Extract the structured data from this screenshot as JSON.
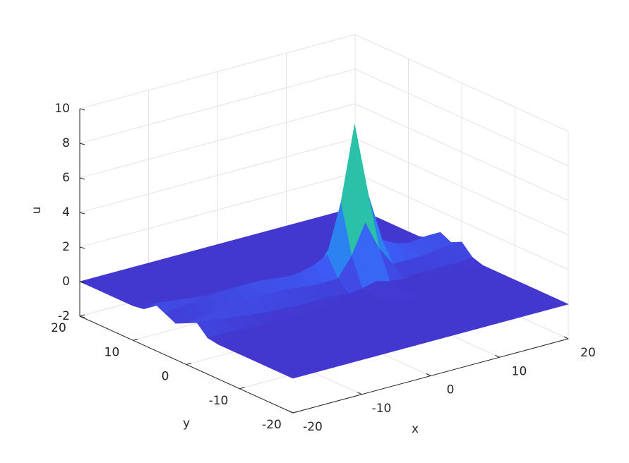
{
  "chart_data": {
    "type": "surface",
    "xlabel": "x",
    "ylabel": "y",
    "zlabel": "u",
    "x": [
      -20,
      -18,
      -16,
      -14,
      -12,
      -10,
      -8,
      -6,
      -4,
      -2,
      0,
      2,
      4,
      6,
      8,
      10,
      12,
      14,
      16,
      18,
      20
    ],
    "y": [
      -20,
      -18,
      -16,
      -14,
      -12,
      -10,
      -8,
      -6,
      -4,
      -2,
      0,
      2,
      4,
      6,
      8,
      10,
      12,
      14,
      16,
      18,
      20
    ],
    "z": [
      [
        0,
        0,
        0,
        0,
        0,
        0,
        0,
        0,
        0,
        0,
        0,
        0,
        0,
        0,
        0,
        0,
        0,
        0,
        0,
        0,
        0
      ],
      [
        0,
        0,
        0,
        0,
        0,
        0,
        0,
        0,
        0,
        0,
        0,
        0,
        0,
        0,
        0,
        0,
        0,
        0,
        0,
        0,
        0
      ],
      [
        0,
        0,
        0,
        0,
        0,
        0,
        0,
        0,
        0,
        0,
        0,
        0,
        0,
        0,
        0,
        0,
        0,
        0,
        0,
        0,
        0
      ],
      [
        0,
        0,
        0,
        0,
        0,
        0,
        0,
        0,
        0,
        0,
        0,
        0,
        0,
        0,
        0,
        0,
        0,
        0,
        0,
        0,
        0
      ],
      [
        0,
        0,
        0,
        0,
        0,
        0,
        0,
        0,
        0,
        0,
        0,
        0,
        0,
        0,
        0,
        0,
        0,
        0,
        0,
        0,
        0
      ],
      [
        0,
        0,
        0,
        0,
        0,
        0,
        0,
        0,
        0,
        0,
        0,
        0,
        0,
        0,
        0,
        0,
        0,
        0,
        0,
        0,
        0
      ],
      [
        0,
        0,
        0,
        0,
        0,
        0,
        0,
        0,
        0,
        0,
        0,
        0,
        0,
        0,
        0,
        0,
        0,
        0,
        0,
        0,
        0
      ],
      [
        0,
        0,
        0,
        0,
        0,
        0,
        0,
        0,
        0,
        0,
        0,
        0,
        0,
        0.3,
        0,
        0,
        0,
        0,
        0,
        0,
        0
      ],
      [
        0.1,
        0.1,
        0.1,
        0,
        0,
        0,
        0,
        0,
        0,
        0,
        0,
        0,
        0,
        0,
        0,
        0,
        0,
        0,
        0,
        0,
        0
      ],
      [
        0.7,
        0.6,
        0.5,
        0.4,
        0.3,
        0.2,
        0.2,
        0.1,
        0.1,
        0.1,
        0.1,
        0,
        0.1,
        0.3,
        0.1,
        0,
        0.1,
        0.1,
        0.1,
        0.1,
        0.2
      ],
      [
        0.4,
        0.5,
        0.6,
        0.7,
        0.8,
        0.8,
        0.8,
        0.8,
        0.7,
        0.6,
        0.6,
        0.6,
        1.7,
        3.4,
        1.7,
        0.6,
        0.6,
        0.6,
        0.7,
        0.8,
        0.8
      ],
      [
        0.1,
        0.1,
        0.2,
        0.2,
        0.3,
        0.4,
        0.5,
        0.7,
        0.9,
        1.1,
        1.3,
        1.7,
        4.5,
        8.8,
        4.5,
        1.7,
        1.3,
        1.1,
        0.9,
        0.7,
        0.5
      ],
      [
        0.4,
        0.5,
        0.6,
        0.7,
        0.8,
        0.8,
        0.8,
        0.8,
        0.7,
        0.6,
        0.6,
        0.6,
        1.7,
        3.4,
        1.7,
        0.6,
        0.6,
        0.6,
        0.7,
        0.8,
        0.8
      ],
      [
        0.7,
        0.6,
        0.5,
        0.4,
        0.3,
        0.2,
        0.2,
        0.1,
        0.1,
        0.1,
        0.1,
        0,
        0.1,
        0.3,
        0.1,
        0,
        0.1,
        0.1,
        0.1,
        0.1,
        0.2
      ],
      [
        0.1,
        0.1,
        0.1,
        0,
        0,
        0,
        0,
        0,
        0,
        0,
        0,
        0,
        0,
        0,
        0,
        0,
        0,
        0,
        0,
        0,
        0
      ],
      [
        0,
        0,
        0,
        0,
        0,
        0,
        0,
        0,
        0,
        0,
        0,
        0,
        0,
        0,
        0,
        0,
        0,
        0,
        0,
        0,
        0
      ],
      [
        0,
        0,
        0,
        0,
        0,
        0,
        0,
        0,
        0,
        0,
        0,
        0,
        0,
        0,
        0,
        0,
        0,
        0,
        0,
        0,
        0
      ],
      [
        0,
        0,
        0,
        0,
        0,
        0,
        0,
        0,
        0,
        0,
        0,
        0,
        0,
        0,
        0,
        0,
        0,
        0,
        0,
        0,
        0
      ],
      [
        0,
        0,
        0,
        0,
        0,
        0,
        0,
        0,
        0,
        0,
        0,
        0,
        0,
        0,
        0,
        0,
        0,
        0,
        0,
        0,
        0
      ],
      [
        0,
        0,
        0,
        0,
        0,
        0,
        0,
        0,
        0,
        0,
        0,
        0,
        0,
        0,
        0,
        0,
        0,
        0,
        0,
        0,
        0
      ],
      [
        0,
        0,
        0,
        0,
        0,
        0,
        0,
        0,
        0,
        0,
        0,
        0,
        0,
        0,
        0,
        0,
        0,
        0,
        0,
        0,
        0
      ]
    ],
    "xlim": [
      -20,
      20
    ],
    "ylim": [
      -20,
      20
    ],
    "zlim": [
      -2,
      10
    ],
    "xticks": [
      -20,
      -10,
      0,
      10,
      20
    ],
    "yticks": [
      -20,
      -10,
      0,
      10,
      20
    ],
    "zticks": [
      -2,
      0,
      2,
      4,
      6,
      8,
      10
    ],
    "grid": true,
    "colormap": [
      "#4237cf",
      "#3d5cf6",
      "#2a85f0",
      "#16a8d8",
      "#20bfb1",
      "#5cc97f",
      "#b7c44a",
      "#f1b83a",
      "#f9e626"
    ]
  }
}
